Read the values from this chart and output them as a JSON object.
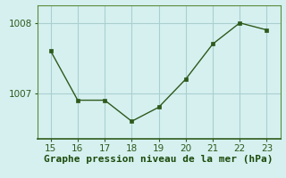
{
  "x": [
    15,
    16,
    17,
    18,
    19,
    20,
    21,
    22,
    23
  ],
  "y": [
    1007.6,
    1006.9,
    1006.9,
    1006.6,
    1006.8,
    1007.2,
    1007.7,
    1008.0,
    1007.9
  ],
  "line_color": "#2d5a1b",
  "marker_color": "#2d5a1b",
  "bg_color": "#d6f0f0",
  "grid_color": "#aacfcf",
  "xlabel": "Graphe pression niveau de la mer (hPa)",
  "xlabel_color": "#1a4a0a",
  "tick_color": "#2d5a1b",
  "spine_color": "#5a8a3a",
  "ylim_min": 1006.35,
  "ylim_max": 1008.25,
  "xlim_min": 14.5,
  "xlim_max": 23.5,
  "yticks": [
    1007,
    1008
  ],
  "xticks": [
    15,
    16,
    17,
    18,
    19,
    20,
    21,
    22,
    23
  ],
  "tick_fontsize": 7.5,
  "xlabel_fontsize": 8
}
